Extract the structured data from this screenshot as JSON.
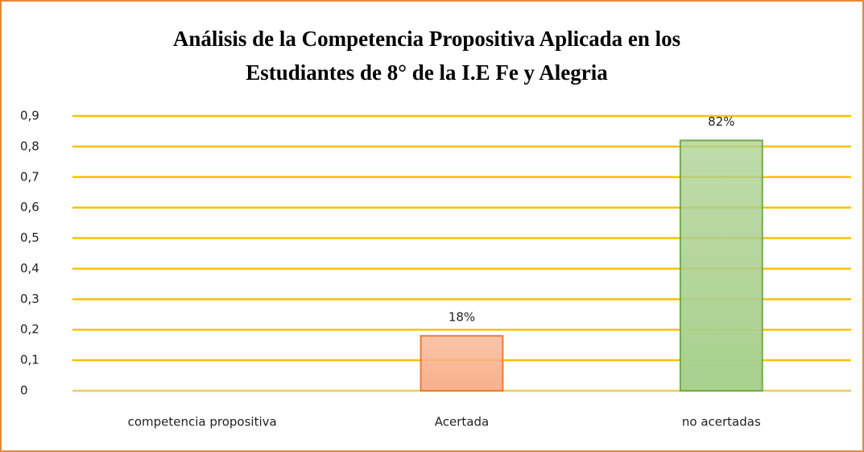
{
  "chart_data": {
    "type": "bar",
    "title": [
      "Análisis de la Competencia Propositiva Aplicada en los",
      "Estudiantes de 8° de la I.E Fe y Alegria"
    ],
    "categories": [
      "competencia propositiva",
      "Acertada",
      "no acertadas"
    ],
    "values": [
      null,
      0.18,
      0.82
    ],
    "value_labels": [
      null,
      "18%",
      "82%"
    ],
    "colors": [
      null,
      "#f8b08c",
      "#a9d08e"
    ],
    "edge_colors": [
      null,
      "#ed7d31",
      "#70ad47"
    ],
    "ylim": [
      0,
      0.9
    ],
    "yticks": [
      0,
      {
        "value": 0.1,
        "label": "0,1"
      },
      {
        "value": 0.2,
        "label": "0,2"
      },
      {
        "value": 0.3,
        "label": "0,3"
      },
      {
        "value": 0.4,
        "label": "0,4"
      },
      {
        "value": 0.5,
        "label": "0,5"
      },
      {
        "value": 0.6,
        "label": "0,6"
      },
      {
        "value": 0.7,
        "label": "0,7"
      },
      {
        "value": 0.8,
        "label": "0,8"
      },
      {
        "value": 0.9,
        "label": "0,9"
      }
    ],
    "grid": true,
    "grid_color": "#ffc000"
  }
}
